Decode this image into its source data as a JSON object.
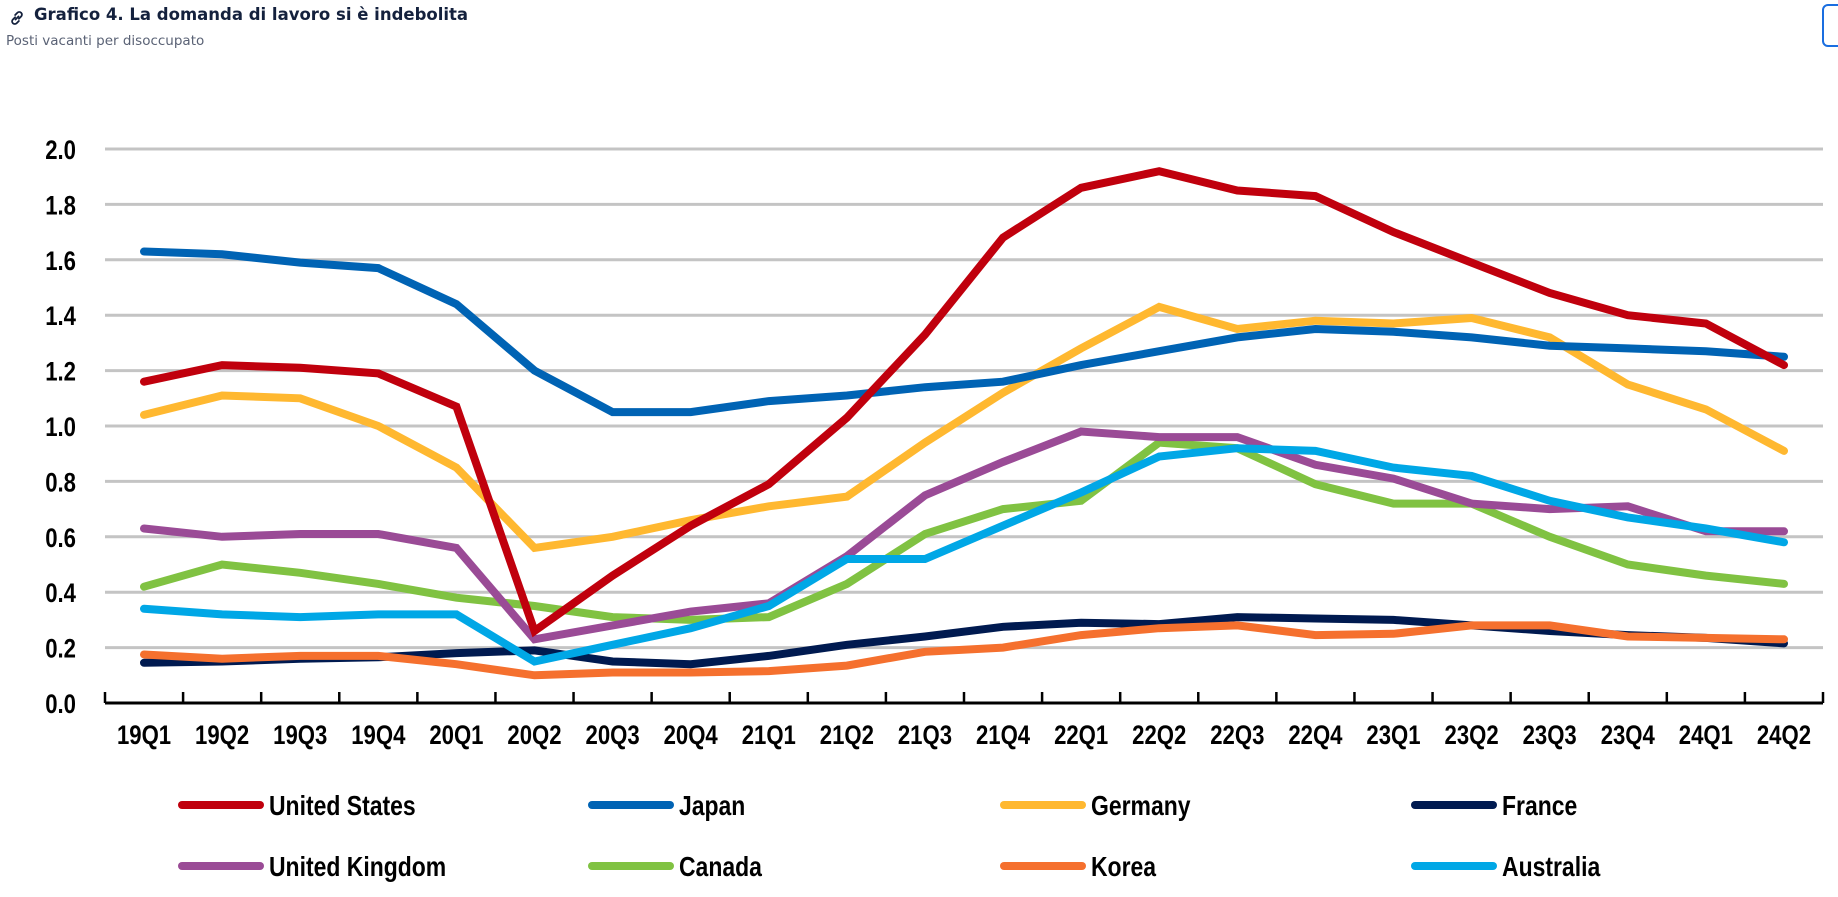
{
  "header": {
    "link_icon": "link-icon",
    "title": "Grafico 4. La domanda di lavoro si è indebolita",
    "subtitle": "Posti vacanti per disoccupato"
  },
  "chart_data": {
    "type": "line",
    "title": "Grafico 4. La domanda di lavoro si è indebolita",
    "subtitle": "Posti vacanti per disoccupato",
    "xlabel": "",
    "ylabel": "",
    "ylim": [
      0,
      2.0
    ],
    "yticks": [
      "0.0",
      "0.2",
      "0.4",
      "0.6",
      "0.8",
      "1.0",
      "1.2",
      "1.4",
      "1.6",
      "1.8",
      "2.0"
    ],
    "grid": true,
    "legend_position": "bottom",
    "categories": [
      "19Q1",
      "19Q2",
      "19Q3",
      "19Q4",
      "20Q1",
      "20Q2",
      "20Q3",
      "20Q4",
      "21Q1",
      "21Q2",
      "21Q3",
      "21Q4",
      "22Q1",
      "22Q2",
      "22Q3",
      "22Q4",
      "23Q1",
      "23Q2",
      "23Q3",
      "23Q4",
      "24Q1",
      "24Q2"
    ],
    "series": [
      {
        "name": "United States",
        "color": "#c0000d",
        "values": [
          1.16,
          1.22,
          1.21,
          1.19,
          1.07,
          0.26,
          0.46,
          0.64,
          0.79,
          1.03,
          1.33,
          1.68,
          1.86,
          1.92,
          1.85,
          1.83,
          1.7,
          1.59,
          1.48,
          1.4,
          1.37,
          1.22
        ]
      },
      {
        "name": "Japan",
        "color": "#0063b4",
        "values": [
          1.63,
          1.62,
          1.59,
          1.57,
          1.44,
          1.2,
          1.05,
          1.05,
          1.09,
          1.11,
          1.14,
          1.16,
          1.22,
          1.27,
          1.32,
          1.35,
          1.34,
          1.32,
          1.29,
          1.28,
          1.27,
          1.25
        ]
      },
      {
        "name": "Germany",
        "color": "#ffb830",
        "values": [
          1.04,
          1.11,
          1.1,
          1.0,
          0.85,
          0.56,
          0.6,
          0.66,
          0.71,
          0.745,
          0.94,
          1.12,
          1.28,
          1.43,
          1.35,
          1.38,
          1.37,
          1.39,
          1.32,
          1.15,
          1.06,
          0.91
        ]
      },
      {
        "name": "France",
        "color": "#001a50",
        "values": [
          0.145,
          0.15,
          0.16,
          0.165,
          0.18,
          0.19,
          0.15,
          0.14,
          0.17,
          0.21,
          0.24,
          0.275,
          0.29,
          0.285,
          0.31,
          0.305,
          0.3,
          0.28,
          0.26,
          0.245,
          0.235,
          0.215
        ]
      },
      {
        "name": "United Kingdom",
        "color": "#9a4b96",
        "values": [
          0.63,
          0.6,
          0.61,
          0.61,
          0.56,
          0.23,
          0.28,
          0.33,
          0.36,
          0.53,
          0.75,
          0.87,
          0.98,
          0.96,
          0.96,
          0.86,
          0.81,
          0.72,
          0.7,
          0.71,
          0.62,
          0.62
        ]
      },
      {
        "name": "Canada",
        "color": "#80c242",
        "values": [
          0.42,
          0.5,
          0.47,
          0.43,
          0.38,
          0.35,
          0.31,
          0.3,
          0.31,
          0.43,
          0.61,
          0.7,
          0.73,
          0.94,
          0.92,
          0.79,
          0.72,
          0.72,
          0.6,
          0.5,
          0.46,
          0.43
        ]
      },
      {
        "name": "Korea",
        "color": "#f5702e",
        "values": [
          0.175,
          0.16,
          0.17,
          0.17,
          0.14,
          0.1,
          0.11,
          0.11,
          0.115,
          0.135,
          0.185,
          0.2,
          0.245,
          0.27,
          0.28,
          0.245,
          0.25,
          0.28,
          0.28,
          0.24,
          0.235,
          0.23
        ]
      },
      {
        "name": "Australia",
        "color": "#00a7e6",
        "values": [
          0.34,
          0.32,
          0.31,
          0.32,
          0.32,
          0.15,
          0.21,
          0.27,
          0.35,
          0.52,
          0.52,
          0.64,
          0.76,
          0.89,
          0.92,
          0.91,
          0.85,
          0.82,
          0.73,
          0.67,
          0.63,
          0.58
        ]
      }
    ],
    "legend": [
      [
        "United States",
        "Japan",
        "Germany",
        "France"
      ],
      [
        "United Kingdom",
        "Canada",
        "Korea",
        "Australia"
      ]
    ]
  }
}
